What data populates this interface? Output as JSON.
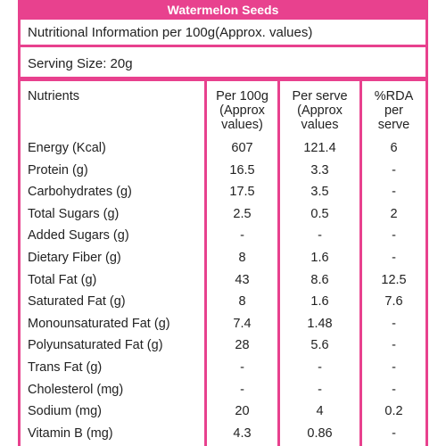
{
  "title": "Watermelon Seeds",
  "subtitle": "Nutritional Information per 100g(Approx. values)",
  "serving_size": "Serving Size:  20g",
  "headers": {
    "nutrients": "Nutrients",
    "per100g": [
      "Per 100g",
      "(Approx",
      "values)"
    ],
    "per_serve": [
      "Per serve",
      "(Approx",
      "values"
    ],
    "rda": [
      "%RDA",
      "per",
      "serve"
    ]
  },
  "rows": [
    {
      "name": "Energy (Kcal)",
      "per100g": "607",
      "per_serve": "121.4",
      "rda": "6"
    },
    {
      "name": "Protein (g)",
      "per100g": "16.5",
      "per_serve": "3.3",
      "rda": "-"
    },
    {
      "name": "Carbohydrates (g)",
      "per100g": "17.5",
      "per_serve": "3.5",
      "rda": "-"
    },
    {
      "name": "Total Sugars (g)",
      "per100g": "2.5",
      "per_serve": "0.5",
      "rda": "2"
    },
    {
      "name": "Added Sugars (g)",
      "per100g": "-",
      "per_serve": "-",
      "rda": "-"
    },
    {
      "name": "Dietary Fiber (g)",
      "per100g": "8",
      "per_serve": "1.6",
      "rda": "-"
    },
    {
      "name": "Total Fat (g)",
      "per100g": "43",
      "per_serve": "8.6",
      "rda": "12.5"
    },
    {
      "name": "Saturated Fat (g)",
      "per100g": "8",
      "per_serve": "1.6",
      "rda": "7.6"
    },
    {
      "name": "Monounsaturated Fat (g)",
      "per100g": "7.4",
      "per_serve": "1.48",
      "rda": "-"
    },
    {
      "name": "Polyunsaturated Fat (g)",
      "per100g": "28",
      "per_serve": "5.6",
      "rda": "-"
    },
    {
      "name": "Trans Fat (g)",
      "per100g": "-",
      "per_serve": "-",
      "rda": "-"
    },
    {
      "name": "Cholesterol (mg)",
      "per100g": "-",
      "per_serve": "-",
      "rda": "-"
    },
    {
      "name": "Sodium (mg)",
      "per100g": "20",
      "per_serve": "4",
      "rda": "0.2"
    },
    {
      "name": "Vitamin B (mg)",
      "per100g": "4.3",
      "per_serve": "0.86",
      "rda": "-"
    }
  ],
  "colors": {
    "accent": "#e8418e",
    "text": "#222222",
    "title_text": "#ffffff"
  }
}
